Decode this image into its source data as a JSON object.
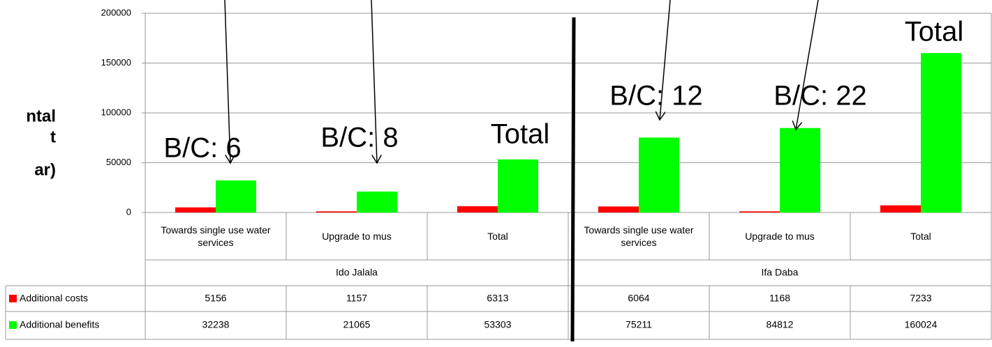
{
  "chart_data": {
    "type": "bar",
    "side_label_lines": [
      "ntal",
      "t",
      "ar)"
    ],
    "categories": [
      "Towards single use water services",
      "Upgrade to mus",
      "Total",
      "Towards single use water services",
      "Upgrade to mus",
      "Total"
    ],
    "groups": [
      "Ido Jalala",
      "Ifa Daba"
    ],
    "series": [
      {
        "name": "Additional costs",
        "color": "#ff0000",
        "values": [
          5156,
          1157,
          6313,
          6064,
          1168,
          7233
        ]
      },
      {
        "name": "Additional benefits",
        "color": "#00ff00",
        "values": [
          32238,
          21065,
          53303,
          75211,
          84812,
          160024
        ]
      }
    ],
    "annotations": [
      "B/C: 6",
      "B/C: 8",
      "Total",
      "B/C: 12",
      "B/C: 22",
      "Total"
    ],
    "ylim": [
      0,
      200000
    ],
    "yticks": [
      0,
      50000,
      100000,
      150000,
      200000
    ],
    "grid": true
  }
}
